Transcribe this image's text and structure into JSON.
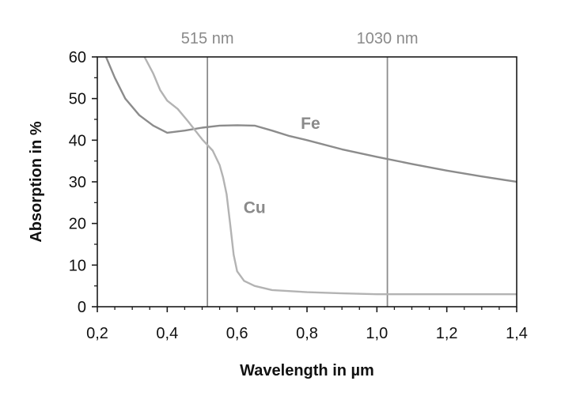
{
  "chart_data": {
    "type": "line",
    "title": "",
    "xlabel": "Wavelength in µm",
    "ylabel": "Absorption in %",
    "xlim": [
      0.2,
      1.4
    ],
    "ylim": [
      0,
      60
    ],
    "x_ticks": [
      0.2,
      0.4,
      0.6,
      0.8,
      1.0,
      1.2,
      1.4
    ],
    "x_tick_labels": [
      "0,2",
      "0,4",
      "0,6",
      "0,8",
      "1,0",
      "1,2",
      "1,4"
    ],
    "y_ticks": [
      0,
      10,
      20,
      30,
      40,
      50,
      60
    ],
    "y_tick_labels": [
      "0",
      "10",
      "20",
      "30",
      "40",
      "50",
      "60"
    ],
    "grid": false,
    "colors": {
      "axis": "#1a1a1a",
      "fe": "#8c8c8c",
      "cu": "#b3b3b3",
      "vline": "#8c8c8c",
      "text_gray": "#8a8a8a"
    },
    "vertical_lines": [
      {
        "x": 0.515,
        "label": "515 nm"
      },
      {
        "x": 1.03,
        "label": "1030 nm"
      }
    ],
    "series": [
      {
        "name": "Fe",
        "x": [
          0.225,
          0.25,
          0.28,
          0.32,
          0.36,
          0.4,
          0.45,
          0.5,
          0.55,
          0.6,
          0.65,
          0.7,
          0.75,
          0.8,
          0.9,
          1.0,
          1.1,
          1.2,
          1.3,
          1.4
        ],
        "y": [
          60,
          55,
          50,
          46,
          43.5,
          41.8,
          42.3,
          43.0,
          43.5,
          43.6,
          43.5,
          42.3,
          41,
          40,
          37.8,
          36,
          34.3,
          32.7,
          31.3,
          30
        ]
      },
      {
        "name": "Cu",
        "x": [
          0.335,
          0.36,
          0.38,
          0.4,
          0.43,
          0.46,
          0.5,
          0.53,
          0.55,
          0.56,
          0.57,
          0.58,
          0.59,
          0.6,
          0.62,
          0.65,
          0.7,
          0.8,
          0.9,
          1.0,
          1.1,
          1.2,
          1.3,
          1.4
        ],
        "y": [
          60,
          56,
          52,
          49.5,
          47.5,
          44.5,
          40.2,
          37.5,
          34,
          31,
          27,
          20,
          12.5,
          8.5,
          6.2,
          5,
          4,
          3.5,
          3.2,
          3,
          3,
          3,
          3,
          3
        ]
      }
    ],
    "annotations": [
      {
        "text": "Fe",
        "x": 0.81,
        "y": 44.2
      },
      {
        "text": "Cu",
        "x": 0.65,
        "y": 24
      }
    ]
  }
}
